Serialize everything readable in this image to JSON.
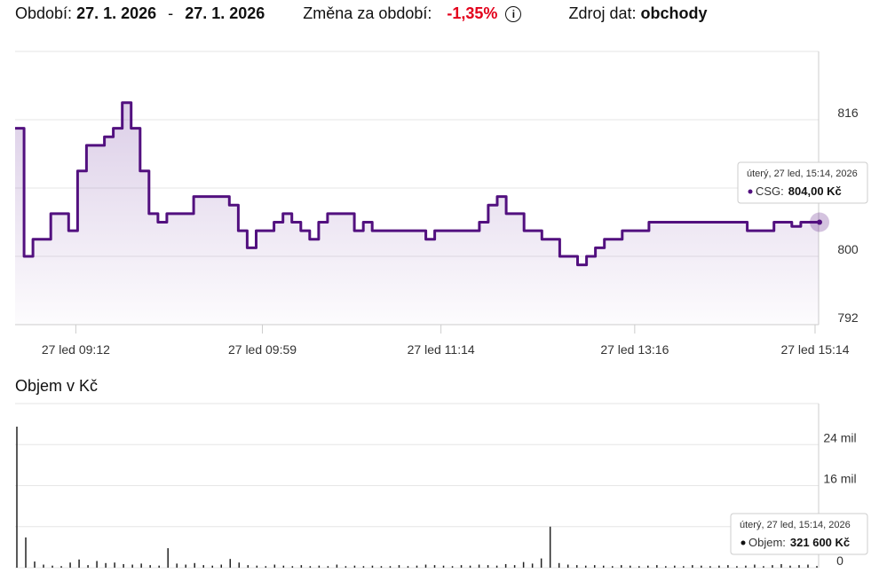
{
  "header": {
    "period_label": "Období:",
    "date_from": "27. 1. 2026",
    "separator": "-",
    "date_to": "27. 1. 2026",
    "change_label": "Změna za období:",
    "change_value": "-1,35%",
    "source_label": "Zdroj dat:",
    "source_value": "obchody"
  },
  "chart_data": [
    {
      "type": "line",
      "series": [
        {
          "name": "CSG",
          "color": "#52107f",
          "values": [
            815,
            800,
            802,
            802,
            805,
            805,
            803,
            810,
            813,
            813,
            814,
            815,
            818,
            815,
            810,
            805,
            804,
            805,
            805,
            805,
            807,
            807,
            807,
            807,
            806,
            803,
            801,
            803,
            803,
            804,
            805,
            804,
            803,
            802,
            804,
            805,
            805,
            805,
            803,
            804,
            803,
            803,
            803,
            803,
            803,
            803,
            802,
            803,
            803,
            803,
            803,
            803,
            804,
            806,
            807,
            805,
            805,
            803,
            803,
            802,
            802,
            800,
            800,
            799,
            800,
            801,
            802,
            802,
            803,
            803,
            803,
            804,
            804,
            804,
            804,
            804,
            804,
            804,
            804,
            804,
            804,
            804,
            803,
            803,
            803,
            804,
            804,
            803.5,
            804,
            804,
            804
          ]
        }
      ],
      "xlim": [
        0,
        90
      ],
      "xticks": [
        {
          "value": 6.8,
          "label": "27 led 09:12"
        },
        {
          "value": 27.7,
          "label": "27 led 09:59"
        },
        {
          "value": 47.7,
          "label": "27 led 11:14"
        },
        {
          "value": 69.4,
          "label": "27 led 13:16"
        },
        {
          "value": 89.6,
          "label": "27 led 15:14"
        }
      ],
      "ylim": [
        792,
        824
      ],
      "yticks": [
        792,
        800,
        816
      ],
      "gridlines": [
        792,
        800,
        808,
        816,
        824
      ],
      "tooltip": {
        "date": "úterý, 27 led, 15:14, 2026",
        "series": "CSG:",
        "value": "804,00 Kč"
      }
    },
    {
      "type": "bar",
      "title": "Objem v Kč",
      "color": "#222222",
      "values": [
        27500000,
        5900000,
        1200000,
        600000,
        400000,
        300000,
        1000000,
        1600000,
        500000,
        1300000,
        900000,
        1000000,
        700000,
        600000,
        800000,
        500000,
        400000,
        3800000,
        800000,
        600000,
        900000,
        500000,
        400000,
        600000,
        1700000,
        1000000,
        500000,
        400000,
        300000,
        600000,
        400000,
        300000,
        500000,
        300000,
        400000,
        300000,
        600000,
        300000,
        400000,
        300000,
        400000,
        300000,
        300000,
        500000,
        300000,
        400000,
        600000,
        500000,
        400000,
        300000,
        500000,
        400000,
        600000,
        500000,
        400000,
        700000,
        500000,
        1100000,
        800000,
        1800000,
        8000000,
        900000,
        600000,
        500000,
        400000,
        500000,
        400000,
        300000,
        500000,
        400000,
        300000,
        400000,
        500000,
        300000,
        400000,
        300000,
        500000,
        400000,
        300000,
        400000,
        500000,
        300000,
        400000,
        600000,
        300000,
        500000,
        700000,
        400000,
        500000,
        600000,
        321600
      ],
      "xlim": [
        0,
        90
      ],
      "ylim": [
        0,
        32000000
      ],
      "yticks": [
        0,
        {
          "value": 16000000,
          "label": "16 mil"
        },
        {
          "value": 24000000,
          "label": "24 mil"
        }
      ],
      "gridlines": [
        0,
        8000000,
        16000000,
        24000000,
        32000000
      ],
      "tooltip": {
        "date": "úterý, 27 led, 15:14, 2026",
        "series": "Objem:",
        "value": "321 600 Kč"
      }
    }
  ]
}
